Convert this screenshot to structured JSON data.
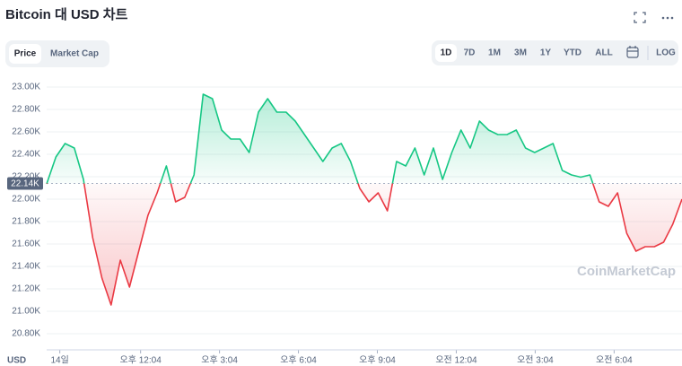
{
  "header": {
    "title": "Bitcoin 대 USD 차트",
    "tabs": [
      "Price",
      "Market Cap"
    ],
    "ranges": [
      "1D",
      "7D",
      "1M",
      "3M",
      "1Y",
      "YTD",
      "ALL"
    ],
    "log": "LOG"
  },
  "chart_data": {
    "type": "line",
    "watermark": "CoinMarketCap",
    "y_unit": "USD",
    "up_color": "#16c784",
    "down_color": "#ea3943",
    "baseline": {
      "value": 22140,
      "label": "22.14K"
    },
    "x": [
      8.5,
      8.85,
      9.2,
      9.55,
      9.9,
      10.25,
      10.6,
      10.95,
      11.3,
      11.65,
      12,
      12.35,
      12.7,
      13.05,
      13.4,
      13.75,
      14.1,
      14.45,
      14.8,
      15.15,
      15.5,
      15.85,
      16.2,
      16.55,
      16.9,
      17.25,
      17.6,
      17.95,
      18.3,
      18.65,
      19,
      19.35,
      19.7,
      20.05,
      20.4,
      20.75,
      21.1,
      21.45,
      21.8,
      22.15,
      22.5,
      22.85,
      23.2,
      23.55,
      23.9,
      24.25,
      24.6,
      24.95,
      25.3,
      25.65,
      26,
      26.35,
      26.7,
      27.05,
      27.4,
      27.75,
      28.1,
      28.45,
      28.8,
      29.15,
      29.5,
      29.85,
      30.2,
      30.55,
      30.9,
      31.25,
      31.6,
      31.95,
      32.3,
      32.65
    ],
    "values": [
      22136,
      22376,
      22496,
      22456,
      22176,
      21656,
      21296,
      21056,
      21456,
      21216,
      21536,
      21856,
      22056,
      22296,
      21976,
      22016,
      22216,
      22936,
      22896,
      22616,
      22536,
      22536,
      22416,
      22776,
      22896,
      22776,
      22776,
      22696,
      22576,
      22456,
      22336,
      22456,
      22496,
      22336,
      22096,
      21976,
      22056,
      21896,
      22336,
      22296,
      22456,
      22216,
      22456,
      22176,
      22416,
      22616,
      22456,
      22696,
      22616,
      22576,
      22576,
      22616,
      22456,
      22416,
      22456,
      22496,
      22256,
      22216,
      22196,
      22216,
      21976,
      21936,
      22056,
      21696,
      21536,
      21576,
      21576,
      21616,
      21776,
      22000
    ],
    "xlim": [
      8.5,
      32.65
    ],
    "xticks": [
      {
        "value": 9,
        "label": "14일"
      },
      {
        "value": 12.07,
        "label": "오후 12:04"
      },
      {
        "value": 15.07,
        "label": "오후 3:04"
      },
      {
        "value": 18.07,
        "label": "오후 6:04"
      },
      {
        "value": 21.07,
        "label": "오후 9:04"
      },
      {
        "value": 24.07,
        "label": "오전 12:04"
      },
      {
        "value": 27.07,
        "label": "오전 3:04"
      },
      {
        "value": 30.07,
        "label": "오전 6:04"
      }
    ],
    "ylim": [
      20750,
      23000
    ],
    "yticks": [
      {
        "value": 23000,
        "label": "23.00K"
      },
      {
        "value": 22800,
        "label": "22.80K"
      },
      {
        "value": 22600,
        "label": "22.60K"
      },
      {
        "value": 22400,
        "label": "22.40K"
      },
      {
        "value": 22200,
        "label": "22.20K"
      },
      {
        "value": 22000,
        "label": "22.00K"
      },
      {
        "value": 21800,
        "label": "21.80K"
      },
      {
        "value": 21600,
        "label": "21.60K"
      },
      {
        "value": 21400,
        "label": "21.40K"
      },
      {
        "value": 21200,
        "label": "21.20K"
      },
      {
        "value": 21000,
        "label": "21.00K"
      },
      {
        "value": 20800,
        "label": "20.80K"
      }
    ],
    "grid": true
  }
}
